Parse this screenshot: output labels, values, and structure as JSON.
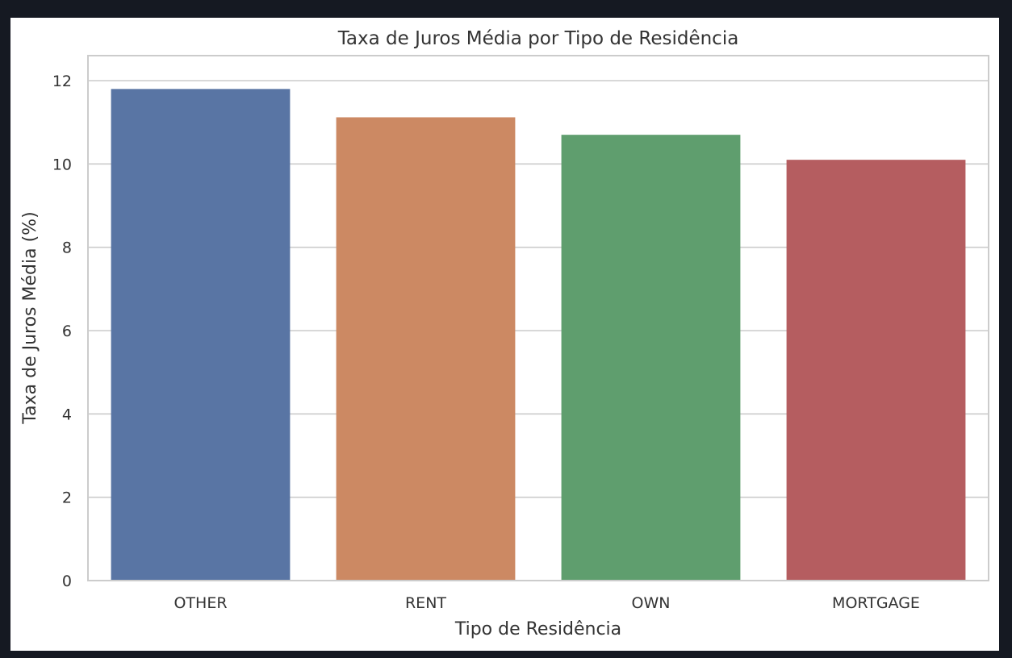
{
  "chart_data": {
    "type": "bar",
    "title": "Taxa de Juros Média por Tipo de Residência",
    "xlabel": "Tipo de Residência",
    "ylabel": "Taxa de Juros Média (%)",
    "categories": [
      "OTHER",
      "RENT",
      "OWN",
      "MORTGAGE"
    ],
    "values": [
      11.8,
      11.12,
      10.7,
      10.1
    ],
    "colors": [
      "#5975a4",
      "#cc8963",
      "#5f9e6e",
      "#b55d60"
    ],
    "ylim": [
      0,
      12.6
    ],
    "yticks": [
      0,
      2,
      4,
      6,
      8,
      10,
      12
    ],
    "grid": true,
    "legend": "none"
  }
}
